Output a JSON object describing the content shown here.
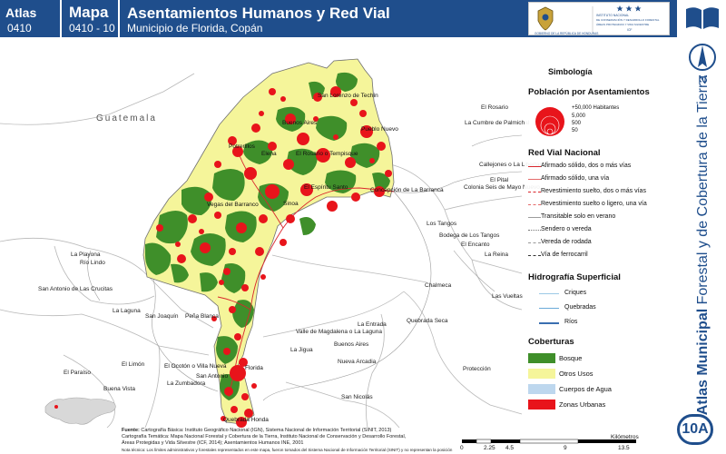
{
  "header": {
    "atlas_label": "Atlas",
    "atlas_number": "0410",
    "mapa_label": "Mapa",
    "mapa_number": "0410 - 10",
    "title": "Asentamientos Humanos y Red Vial",
    "subtitle": "Municipio de Florida, Copán",
    "logo_text_1": "GOBIERNO DE LA REPÚBLICA DE HONDURAS",
    "logo_text_2": "INSTITUTO NACIONAL DE CONSERVACIÓN Y DESARROLLO FORESTAL ÁREAS PROTEGIDAS Y VIDA SILVESTRE ICF"
  },
  "side": {
    "title_bold": "Atlas Municipal",
    "title_rest": " Forestal y de Cobertura de la Tierra",
    "north_label": "N",
    "badge": "10A"
  },
  "map": {
    "country_label": "Guatemala",
    "places_inside": [
      "San Lorenzo de Techín",
      "Buenos Aires",
      "Pueblo Nuevo",
      "Potrerillos",
      "El Rosario o Tempisque",
      "Elena",
      "Concepción de La Barranca",
      "El Espíritu Santo",
      "Florida",
      "Quebrada Honda",
      "El Ocotón o Villa Nueva",
      "San Antonio",
      "Vegas del Barranco",
      "Sinoa"
    ],
    "places_outside": [
      "El Rosario",
      "La Cumbre de Palmichal",
      "Callejones o La Libertad",
      "El Pital",
      "Colonia Seis de Mayo Nuevo",
      "Los Tangos",
      "Bodega de Los Tangos",
      "El Encanto",
      "La Reina",
      "La Playona",
      "Río Lindo",
      "San Antonio de Las Crucitas",
      "Chalmeca",
      "Las Vueltas",
      "La Laguna",
      "San Joaquín",
      "Peña Blanca",
      "La Entrada",
      "Valle de Magdalena o La Laguna",
      "Quebrada Seca",
      "La Jigua",
      "Buenos Aires",
      "Nueva Arcadia",
      "El Paraíso",
      "El Limón",
      "Protección",
      "La Zumbadora",
      "Buena Vista",
      "San Nicolás"
    ]
  },
  "legend": {
    "title": "Simbología",
    "population_heading": "Población por Asentamientos",
    "population_classes": [
      "+50,000 Habitantes",
      "5,000",
      "500",
      "50"
    ],
    "roads_heading": "Red Vial Nacional",
    "roads": [
      "Afirmado sólido, dos o más vías",
      "Afirmado sólido, una vía",
      "Revestimiento suelto, dos o más vías",
      "Revestimiento suelto o ligero, una vía",
      "Transitable solo en verano",
      "Sendero o vereda",
      "Vereda de rodada",
      "Vía de ferrocarril"
    ],
    "hydro_heading": "Hidrografía Superficial",
    "hydro": [
      "Criques",
      "Quebradas",
      "Ríos"
    ],
    "cover_heading": "Coberturas",
    "covers": [
      {
        "label": "Bosque",
        "color": "#3f8f2a"
      },
      {
        "label": "Otros Usos",
        "color": "#f5f59a"
      },
      {
        "label": "Cuerpos de Agua",
        "color": "#bdd7ee"
      },
      {
        "label": "Zonas Urbanas",
        "color": "#e8141b"
      }
    ]
  },
  "footer": {
    "fuente_label": "Fuente:",
    "line1": "Cartografía Básica: Instituto Geográfico Nacional (IGN), Sistema Nacional de Información Territorial (SINIT, 2013)",
    "line2": "Cartografía Temática: Mapa Nacional Forestal y Cobertura de la Tierra, Instituto Nacional de Conservación y Desarrollo Forestal,",
    "line3": "Áreas Protegidas y Vida Silvestre (ICF, 2014); Asentamientos Humanos INE, 2001",
    "note": "Nota técnica: Los límites administrativos y forestales representados en este mapa, fueron tomados del Sistema Nacional de Información Territorial (SINIT) y no representan la posición oficial."
  },
  "scale": {
    "ticks": [
      "0",
      "2.25",
      "4.5",
      "9",
      "13.5"
    ],
    "units": "Kilómetros"
  },
  "colors": {
    "header_blue": "#1f4e8c",
    "forest": "#3f8f2a",
    "other_uses": "#f5f59a",
    "urban": "#e8141b"
  }
}
